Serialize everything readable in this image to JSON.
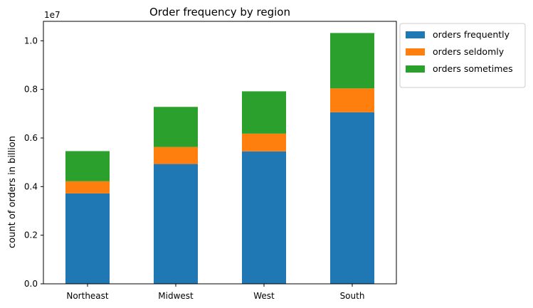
{
  "chart_data": {
    "type": "bar",
    "stacked": true,
    "title": "Order frequency by region",
    "xlabel": "",
    "ylabel": "count of orders in billion",
    "y_offset_label": "1e7",
    "categories": [
      "Northeast",
      "Midwest",
      "West",
      "South"
    ],
    "series": [
      {
        "name": "orders frequently",
        "color": "#1f77b4",
        "values": [
          0.372,
          0.493,
          0.545,
          0.706
        ]
      },
      {
        "name": "orders seldomly",
        "color": "#ff7f0e",
        "values": [
          0.05,
          0.07,
          0.073,
          0.098
        ]
      },
      {
        "name": "orders sometimes",
        "color": "#2ca02c",
        "values": [
          0.124,
          0.165,
          0.174,
          0.228
        ]
      }
    ],
    "ylim": [
      0,
      1.08
    ],
    "yticks": [
      "0.0",
      "0.2",
      "0.4",
      "0.6",
      "0.8",
      "1.0"
    ],
    "grid": false,
    "legend": "outside-top-right"
  }
}
